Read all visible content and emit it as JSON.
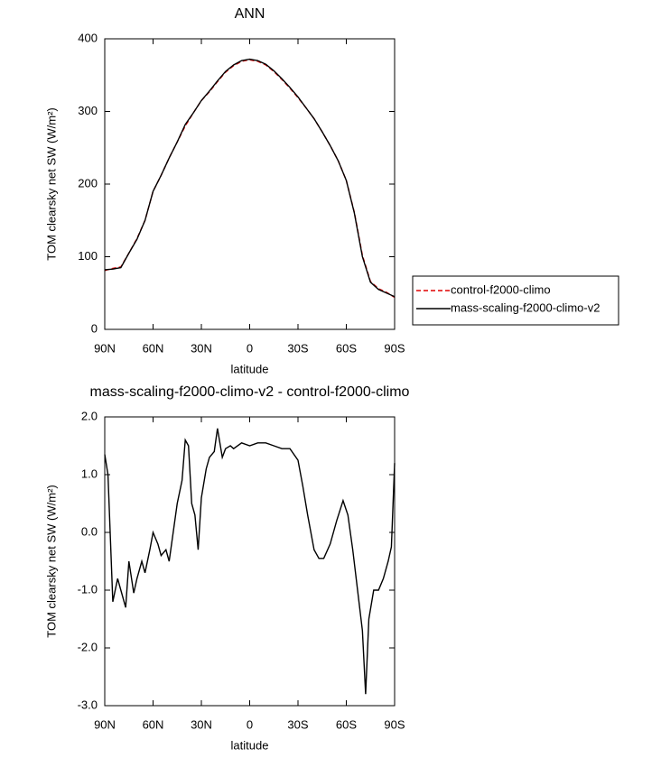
{
  "chart_data": [
    {
      "type": "line",
      "title": "ANN",
      "xlabel": "latitude",
      "ylabel": "TOM clearsky net SW (W/m²)",
      "x": [
        90,
        85,
        80,
        75,
        70,
        65,
        60,
        55,
        50,
        45,
        40,
        35,
        30,
        25,
        20,
        15,
        10,
        5,
        0,
        -5,
        -10,
        -15,
        -20,
        -25,
        -30,
        -35,
        -40,
        -45,
        -50,
        -55,
        -60,
        -65,
        -70,
        -75,
        -80,
        -85,
        -90
      ],
      "series": [
        {
          "name": "control-f2000-climo",
          "color": "#e00000",
          "style": "dashed",
          "values": [
            81,
            84,
            86,
            105,
            125,
            150,
            190,
            212,
            236,
            258,
            280,
            298,
            315,
            327,
            341,
            354,
            363,
            369,
            371,
            369,
            364,
            355,
            344,
            332,
            319,
            305,
            290,
            272,
            253,
            232,
            205,
            161,
            102,
            66,
            56,
            51,
            44
          ]
        },
        {
          "name": "mass-scaling-f2000-climo-v2",
          "color": "#000000",
          "style": "solid",
          "values": [
            82,
            83,
            85,
            105,
            124,
            150,
            190,
            212,
            236,
            258,
            282,
            298,
            315,
            328,
            342,
            355,
            364,
            370,
            372,
            370,
            365,
            356,
            345,
            333,
            320,
            305,
            290,
            272,
            253,
            232,
            205,
            160,
            100,
            65,
            55,
            50,
            45
          ]
        }
      ],
      "xlim": [
        90,
        -90
      ],
      "xticks": [
        {
          "value": 90,
          "label": "90N"
        },
        {
          "value": 60,
          "label": "60N"
        },
        {
          "value": 30,
          "label": "30N"
        },
        0,
        {
          "value": -30,
          "label": "30S"
        },
        {
          "value": -60,
          "label": "60S"
        },
        {
          "value": -90,
          "label": "90S"
        }
      ],
      "ylim": [
        0,
        400
      ],
      "yticks": [
        0,
        100,
        200,
        300,
        400
      ],
      "legend": "right"
    },
    {
      "type": "line",
      "title": "mass-scaling-f2000-climo-v2 - control-f2000-climo",
      "xlabel": "latitude",
      "ylabel": "TOM clearsky net SW (W/m²)",
      "x": [
        90,
        88,
        85,
        82,
        80,
        77,
        75,
        72,
        70,
        67,
        65,
        62,
        60,
        57,
        55,
        52,
        50,
        47,
        45,
        42,
        40,
        38,
        36,
        34,
        32,
        30,
        27,
        25,
        22,
        20,
        17,
        15,
        12,
        10,
        5,
        0,
        -5,
        -10,
        -15,
        -20,
        -25,
        -30,
        -33,
        -36,
        -40,
        -43,
        -46,
        -50,
        -54,
        -58,
        -61,
        -64,
        -67,
        -70,
        -72,
        -74,
        -77,
        -80,
        -83,
        -86,
        -88,
        -90
      ],
      "series": [
        {
          "color": "#000000",
          "style": "solid",
          "values": [
            1.35,
            1.0,
            -1.2,
            -0.8,
            -1.0,
            -1.3,
            -0.5,
            -1.05,
            -0.8,
            -0.5,
            -0.7,
            -0.3,
            0.0,
            -0.2,
            -0.4,
            -0.3,
            -0.5,
            0.1,
            0.5,
            0.9,
            1.6,
            1.5,
            0.5,
            0.3,
            -0.3,
            0.6,
            1.1,
            1.3,
            1.4,
            1.8,
            1.3,
            1.45,
            1.5,
            1.45,
            1.55,
            1.5,
            1.55,
            1.55,
            1.5,
            1.45,
            1.45,
            1.25,
            0.8,
            0.3,
            -0.3,
            -0.45,
            -0.45,
            -0.2,
            0.2,
            0.55,
            0.3,
            -0.3,
            -1.0,
            -1.7,
            -2.8,
            -1.5,
            -1.0,
            -1.0,
            -0.8,
            -0.5,
            -0.25,
            1.2
          ]
        }
      ],
      "xlim": [
        90,
        -90
      ],
      "xticks": [
        {
          "value": 90,
          "label": "90N"
        },
        {
          "value": 60,
          "label": "60N"
        },
        {
          "value": 30,
          "label": "30N"
        },
        0,
        {
          "value": -30,
          "label": "30S"
        },
        {
          "value": -60,
          "label": "60S"
        },
        {
          "value": -90,
          "label": "90S"
        }
      ],
      "ylim": [
        -3,
        2
      ],
      "yticks": [
        {
          "value": -3,
          "label": "-3.0"
        },
        {
          "value": -2,
          "label": "-2.0"
        },
        {
          "value": -1,
          "label": "-1.0"
        },
        {
          "value": 0,
          "label": "0.0"
        },
        {
          "value": 1,
          "label": "1.0"
        },
        {
          "value": 2,
          "label": "2.0"
        }
      ]
    }
  ]
}
